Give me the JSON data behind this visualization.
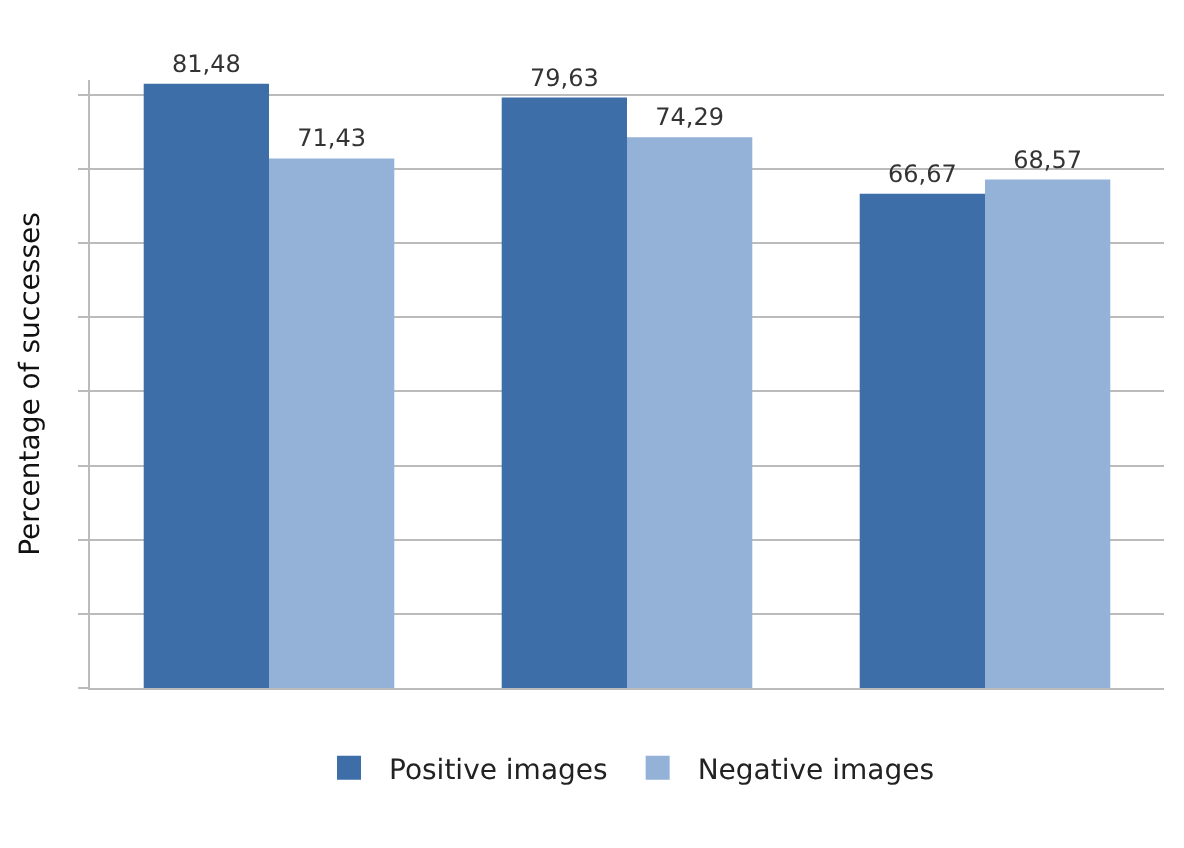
{
  "chart_data": {
    "type": "bar",
    "ylabel": "Percentage of successes",
    "categories": [
      null,
      null,
      null
    ],
    "series": [
      {
        "name": "Positive images",
        "color": "#3e6ea8",
        "values": [
          81.48,
          79.63,
          66.67
        ],
        "value_labels": [
          "81,48",
          "79,63",
          "66,67"
        ]
      },
      {
        "name": "Negative images",
        "color": "#94b1d8",
        "values": [
          71.43,
          74.29,
          68.57
        ],
        "value_labels": [
          "71,43",
          "74,29",
          "68,57"
        ]
      }
    ],
    "ylim": [
      0,
      82
    ],
    "yticks": [
      {
        "value": 0,
        "label": null
      },
      {
        "value": 10,
        "label": null
      },
      {
        "value": 20,
        "label": null
      },
      {
        "value": 30,
        "label": null
      },
      {
        "value": 40,
        "label": null
      },
      {
        "value": 50,
        "label": null
      },
      {
        "value": 60,
        "label": null
      },
      {
        "value": 70,
        "label": null
      },
      {
        "value": 80,
        "label": null
      }
    ],
    "grid": "y",
    "legend": "bottom",
    "tick_labels": false
  }
}
